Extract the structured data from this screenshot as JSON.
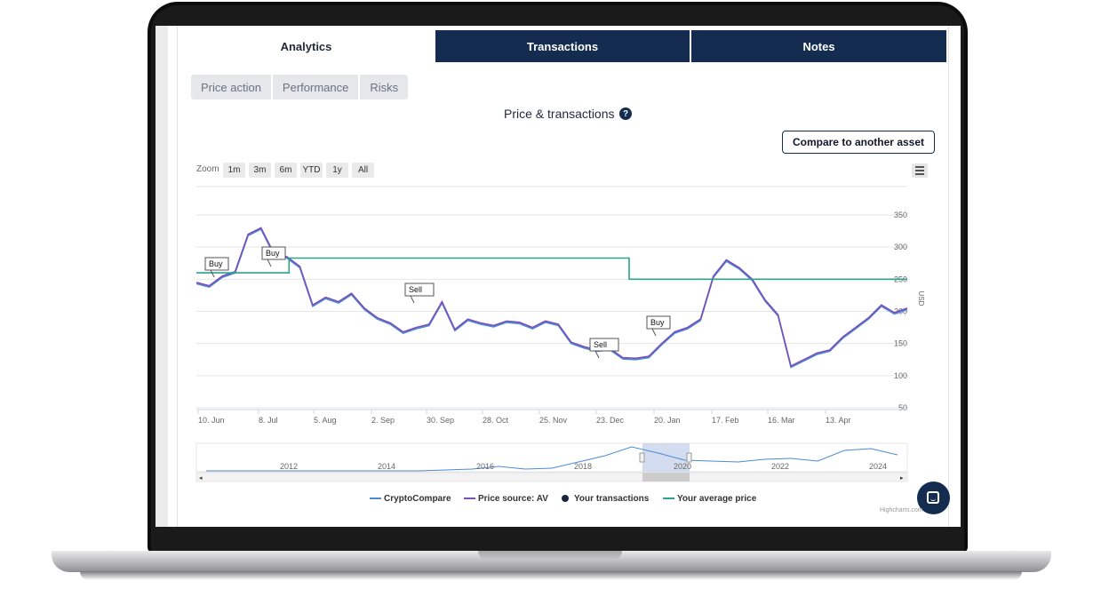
{
  "tabs": [
    {
      "label": "Analytics",
      "active": true
    },
    {
      "label": "Transactions",
      "active": false
    },
    {
      "label": "Notes",
      "active": false
    }
  ],
  "subtabs": [
    "Price action",
    "Performance",
    "Risks"
  ],
  "chart_title": "Price & transactions",
  "help_icon": "?",
  "compare_button": "Compare to another asset",
  "zoom": {
    "label": "Zoom",
    "buttons": [
      "1m",
      "3m",
      "6m",
      "YTD",
      "1y",
      "All"
    ]
  },
  "menu_icon": "hamburger-icon",
  "credits": "Highcharts.com",
  "colors": {
    "navy": "#132c50",
    "purple": "#7b4fb8",
    "blue": "#4a8bd6",
    "teal": "#2aa38a"
  },
  "chart_data": {
    "type": "line",
    "ylabel": "USD",
    "ylim": [
      50,
      350
    ],
    "yticks": [
      350,
      300,
      250,
      200,
      150,
      100,
      50
    ],
    "xticks": [
      "10. Jun",
      "8. Jul",
      "5. Aug",
      "2. Sep",
      "30. Sep",
      "28. Oct",
      "25. Nov",
      "23. Dec",
      "20. Jan",
      "17. Feb",
      "16. Mar",
      "13. Apr"
    ],
    "series": [
      {
        "name": "CryptoCompare",
        "values": [
          245,
          240,
          255,
          262,
          320,
          330,
          290,
          285,
          270,
          210,
          222,
          215,
          228,
          205,
          190,
          182,
          168,
          175,
          180,
          215,
          172,
          188,
          182,
          178,
          185,
          183,
          175,
          185,
          180,
          152,
          145,
          140,
          142,
          128,
          127,
          130,
          150,
          168,
          175,
          188,
          255,
          280,
          268,
          250,
          218,
          195,
          115,
          125,
          135,
          140,
          160,
          175,
          190,
          210,
          198,
          205
        ]
      },
      {
        "name": "Price source: AV",
        "values": [
          245,
          240,
          255,
          262,
          320,
          330,
          290,
          285,
          270,
          210,
          222,
          215,
          228,
          205,
          190,
          182,
          168,
          175,
          180,
          215,
          172,
          188,
          182,
          178,
          185,
          183,
          175,
          185,
          180,
          152,
          145,
          140,
          142,
          128,
          127,
          130,
          150,
          168,
          175,
          188,
          255,
          280,
          268,
          250,
          218,
          195,
          115,
          125,
          135,
          140,
          160,
          175,
          190,
          210,
          198,
          205
        ]
      },
      {
        "name": "Your transactions",
        "values": []
      },
      {
        "name": "Your average price",
        "values": [
          260,
          260,
          260,
          283,
          283,
          283,
          283,
          283,
          283,
          283,
          283,
          283,
          283,
          283,
          250,
          250,
          250,
          250,
          250,
          250,
          250,
          250,
          250,
          250
        ]
      }
    ],
    "flags": [
      {
        "label": "Buy",
        "date": "10. Jun"
      },
      {
        "label": "Buy",
        "date": "8. Jul"
      },
      {
        "label": "Sell",
        "date": "2. Sep"
      },
      {
        "label": "Sell",
        "date": "23. Dec"
      },
      {
        "label": "Buy",
        "date": "20. Jan"
      }
    ],
    "navigator_years": [
      "2012",
      "2014",
      "2016",
      "2018",
      "2020",
      "2022",
      "2024"
    ],
    "legend_placement": "bottom-center"
  }
}
